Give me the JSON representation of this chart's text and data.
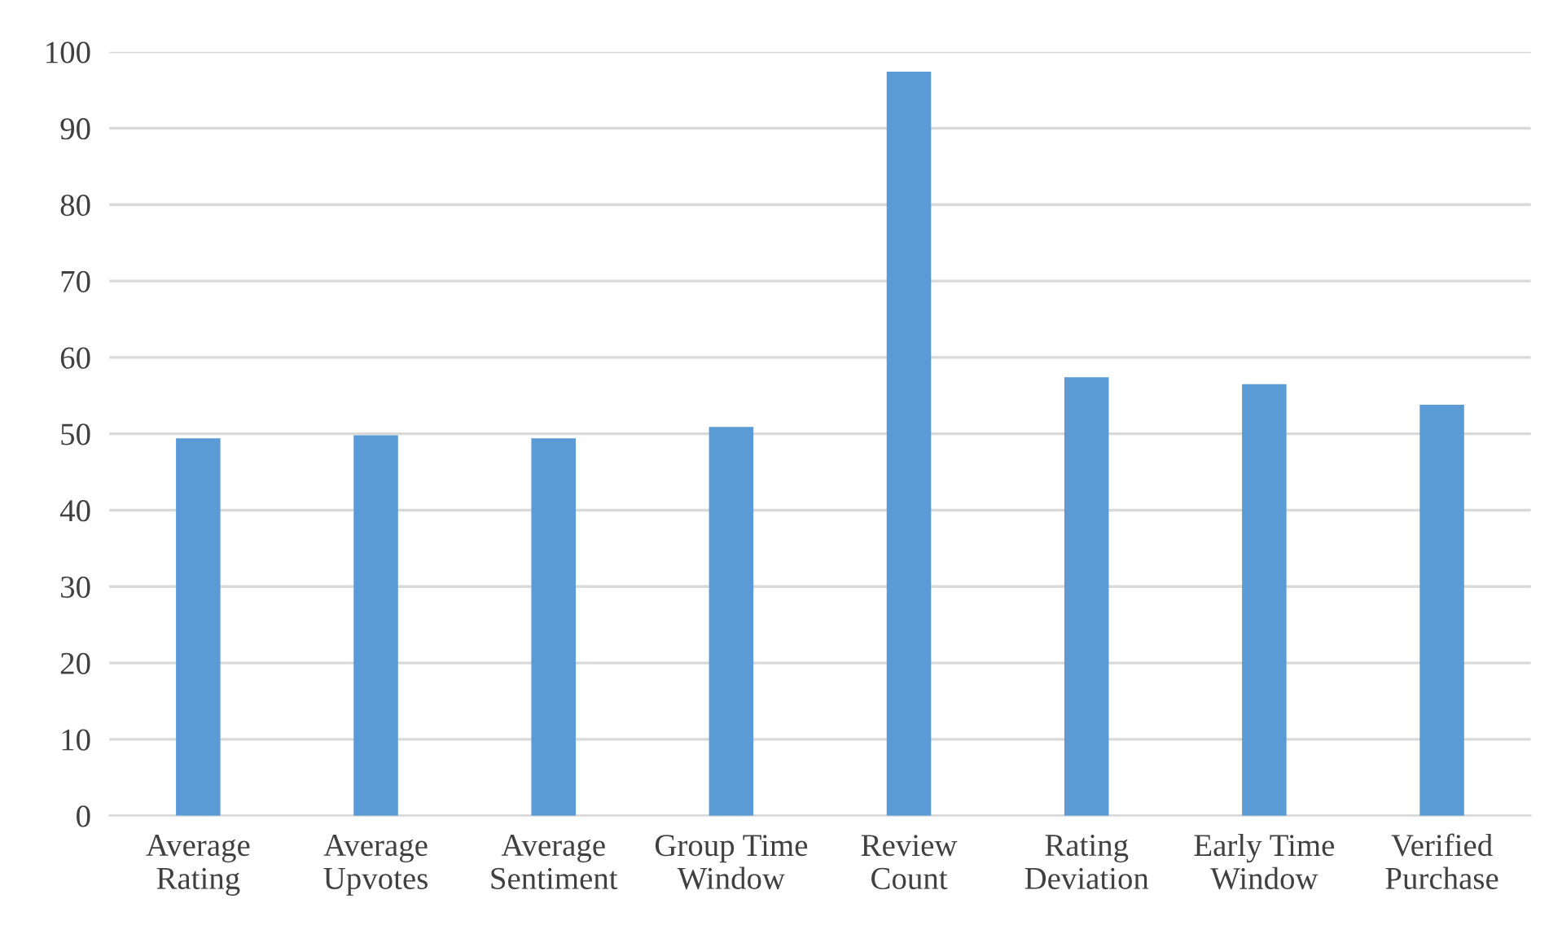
{
  "chart_data": {
    "type": "bar",
    "categories": [
      "Average\nRating",
      "Average\nUpvotes",
      "Average\nSentiment",
      "Group Time\nWindow",
      "Review\nCount",
      "Rating\nDeviation",
      "Early Time\nWindow",
      "Verified\nPurchase"
    ],
    "values": [
      49.4,
      49.8,
      49.4,
      50.9,
      97.4,
      57.4,
      56.5,
      53.8
    ],
    "color": "#5b9bd5",
    "ylim": [
      0,
      100
    ],
    "yticks": [
      0,
      10,
      20,
      30,
      40,
      50,
      60,
      70,
      80,
      90,
      100
    ],
    "grid": "y"
  }
}
